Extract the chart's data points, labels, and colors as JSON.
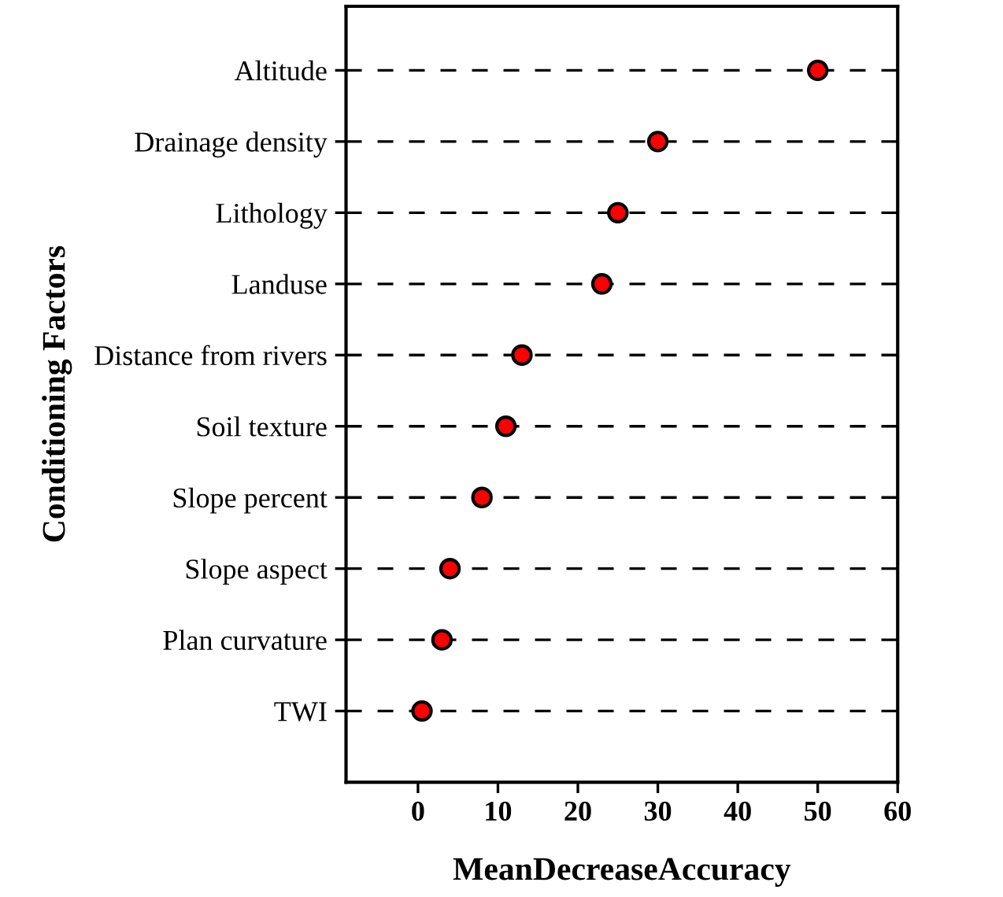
{
  "chart_data": {
    "type": "scatter",
    "xlabel": "MeanDecreaseAccuracy",
    "ylabel": "Conditioning Factors",
    "categories": [
      "Altitude",
      "Drainage density",
      "Lithology",
      "Landuse",
      "Distance from rivers",
      "Soil texture",
      "Slope percent",
      "Slope aspect",
      "Plan curvature",
      "TWI"
    ],
    "orientation": "horizontal",
    "values": [
      50,
      30,
      25,
      23,
      13,
      11,
      8,
      4,
      3,
      0.5
    ],
    "color": "#ff0000",
    "marker": "circle",
    "grid": "y",
    "line_style": "dashed",
    "xlim": [
      -9,
      60
    ],
    "xticks": [
      0,
      10,
      20,
      30,
      40,
      50,
      60
    ]
  }
}
